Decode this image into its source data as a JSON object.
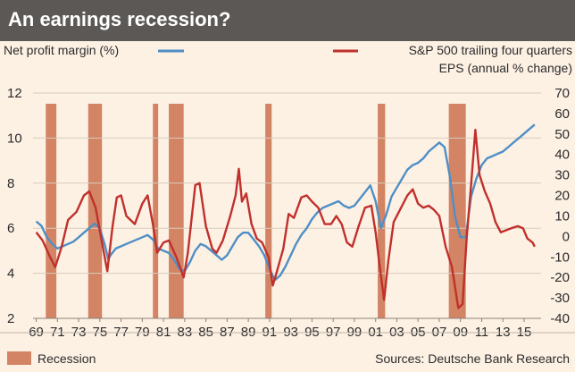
{
  "header": {
    "title": "An earnings recession?"
  },
  "chart_data": {
    "type": "line",
    "title": "An earnings recession?",
    "left_axis_label": "Net profit margin (%)",
    "right_axis_label": [
      "S&P 500 trailing four quarters",
      "EPS (annual % change)"
    ],
    "left_ylim": [
      2,
      12
    ],
    "left_ticks": [
      "2",
      "4",
      "6",
      "8",
      "10",
      "12"
    ],
    "right_ylim": [
      -40,
      70
    ],
    "right_ticks": [
      "-40",
      "-30",
      "-20",
      "-10",
      "0",
      "10",
      "20",
      "30",
      "40",
      "50",
      "60",
      "70"
    ],
    "xlim": [
      1968.7,
      2016.6
    ],
    "x_ticks": [
      "69",
      "71",
      "73",
      "75",
      "77",
      "79",
      "81",
      "83",
      "85",
      "87",
      "89",
      "91",
      "93",
      "95",
      "97",
      "99",
      "01",
      "03",
      "05",
      "07",
      "09",
      "11",
      "13",
      "15"
    ],
    "grid": "horizontal",
    "legend_recession": "Recession",
    "source": "Sources: Deutsche Bank Research",
    "colors": {
      "margin": "#4f8fc6",
      "eps": "#c0302c",
      "recession": "#d28464",
      "title_bg": "#5b5856",
      "background": "#fdf1e4"
    },
    "recessions": [
      [
        1969.9,
        1970.9
      ],
      [
        1973.9,
        1975.2
      ],
      [
        1980.0,
        1980.5
      ],
      [
        1981.5,
        1982.9
      ],
      [
        1990.6,
        1991.2
      ],
      [
        2001.2,
        2001.9
      ],
      [
        2007.9,
        2009.5
      ]
    ],
    "series": [
      {
        "axis": "left",
        "points": [
          [
            1969.0,
            6.3
          ],
          [
            1969.5,
            6.1
          ],
          [
            1970.0,
            5.6
          ],
          [
            1970.5,
            5.3
          ],
          [
            1971.0,
            5.1
          ],
          [
            1971.5,
            5.2
          ],
          [
            1972.0,
            5.3
          ],
          [
            1972.5,
            5.4
          ],
          [
            1973.0,
            5.6
          ],
          [
            1973.5,
            5.8
          ],
          [
            1974.0,
            6.0
          ],
          [
            1974.5,
            6.2
          ],
          [
            1975.0,
            6.0
          ],
          [
            1975.5,
            5.2
          ],
          [
            1975.8,
            4.6
          ],
          [
            1976.0,
            4.8
          ],
          [
            1976.5,
            5.1
          ],
          [
            1977.0,
            5.2
          ],
          [
            1977.5,
            5.3
          ],
          [
            1978.0,
            5.4
          ],
          [
            1978.5,
            5.5
          ],
          [
            1979.0,
            5.6
          ],
          [
            1979.5,
            5.7
          ],
          [
            1980.0,
            5.5
          ],
          [
            1980.5,
            5.1
          ],
          [
            1981.0,
            5.0
          ],
          [
            1981.5,
            4.9
          ],
          [
            1982.0,
            4.6
          ],
          [
            1982.5,
            4.2
          ],
          [
            1983.0,
            4.1
          ],
          [
            1983.5,
            4.5
          ],
          [
            1984.0,
            5.0
          ],
          [
            1984.5,
            5.3
          ],
          [
            1985.0,
            5.2
          ],
          [
            1985.5,
            5.0
          ],
          [
            1986.0,
            4.8
          ],
          [
            1986.5,
            4.6
          ],
          [
            1987.0,
            4.8
          ],
          [
            1987.5,
            5.2
          ],
          [
            1988.0,
            5.6
          ],
          [
            1988.5,
            5.8
          ],
          [
            1989.0,
            5.8
          ],
          [
            1989.5,
            5.5
          ],
          [
            1990.0,
            5.2
          ],
          [
            1990.5,
            4.8
          ],
          [
            1991.0,
            4.2
          ],
          [
            1991.5,
            3.7
          ],
          [
            1992.0,
            3.9
          ],
          [
            1992.5,
            4.3
          ],
          [
            1993.0,
            4.8
          ],
          [
            1993.5,
            5.3
          ],
          [
            1994.0,
            5.7
          ],
          [
            1994.5,
            6.0
          ],
          [
            1995.0,
            6.4
          ],
          [
            1995.5,
            6.7
          ],
          [
            1996.0,
            6.9
          ],
          [
            1996.5,
            7.0
          ],
          [
            1997.0,
            7.1
          ],
          [
            1997.5,
            7.2
          ],
          [
            1998.0,
            7.0
          ],
          [
            1998.5,
            6.9
          ],
          [
            1999.0,
            7.0
          ],
          [
            1999.5,
            7.3
          ],
          [
            2000.0,
            7.6
          ],
          [
            2000.5,
            7.9
          ],
          [
            2001.0,
            7.2
          ],
          [
            2001.5,
            6.0
          ],
          [
            2002.0,
            6.6
          ],
          [
            2002.5,
            7.4
          ],
          [
            2003.0,
            7.8
          ],
          [
            2003.5,
            8.2
          ],
          [
            2004.0,
            8.6
          ],
          [
            2004.5,
            8.8
          ],
          [
            2005.0,
            8.9
          ],
          [
            2005.5,
            9.1
          ],
          [
            2006.0,
            9.4
          ],
          [
            2006.5,
            9.6
          ],
          [
            2007.0,
            9.8
          ],
          [
            2007.5,
            9.6
          ],
          [
            2008.0,
            8.3
          ],
          [
            2008.5,
            6.5
          ],
          [
            2009.0,
            5.6
          ],
          [
            2009.5,
            5.6
          ],
          [
            2010.0,
            7.4
          ],
          [
            2010.5,
            8.2
          ],
          [
            2011.0,
            8.8
          ],
          [
            2011.5,
            9.1
          ],
          [
            2012.0,
            9.2
          ],
          [
            2012.5,
            9.3
          ],
          [
            2013.0,
            9.4
          ],
          [
            2013.5,
            9.6
          ],
          [
            2014.0,
            9.8
          ],
          [
            2014.5,
            10.0
          ],
          [
            2015.0,
            10.2
          ],
          [
            2015.5,
            10.4
          ],
          [
            2016.0,
            10.6
          ]
        ]
      },
      {
        "axis": "right",
        "points": [
          [
            1969.0,
            2
          ],
          [
            1969.6,
            -2
          ],
          [
            1970.3,
            -10
          ],
          [
            1970.8,
            -15
          ],
          [
            1971.4,
            -5
          ],
          [
            1972.0,
            8
          ],
          [
            1972.8,
            12
          ],
          [
            1973.5,
            20
          ],
          [
            1974.0,
            22
          ],
          [
            1974.6,
            14
          ],
          [
            1975.2,
            -3
          ],
          [
            1975.7,
            -17
          ],
          [
            1976.2,
            5
          ],
          [
            1976.6,
            19
          ],
          [
            1977.0,
            20
          ],
          [
            1977.5,
            10
          ],
          [
            1978.3,
            6
          ],
          [
            1979.0,
            16
          ],
          [
            1979.5,
            20
          ],
          [
            1980.0,
            6
          ],
          [
            1980.4,
            -8
          ],
          [
            1981.0,
            -3
          ],
          [
            1981.5,
            -2
          ],
          [
            1982.2,
            -10
          ],
          [
            1982.9,
            -20
          ],
          [
            1983.3,
            -8
          ],
          [
            1984.0,
            25
          ],
          [
            1984.4,
            26
          ],
          [
            1985.0,
            5
          ],
          [
            1985.6,
            -6
          ],
          [
            1986.0,
            -8
          ],
          [
            1986.6,
            -2
          ],
          [
            1987.3,
            10
          ],
          [
            1987.8,
            20
          ],
          [
            1988.1,
            33
          ],
          [
            1988.4,
            17
          ],
          [
            1988.8,
            21
          ],
          [
            1989.3,
            6
          ],
          [
            1989.8,
            -1
          ],
          [
            1990.3,
            -3
          ],
          [
            1990.9,
            -10
          ],
          [
            1991.3,
            -24
          ],
          [
            1991.7,
            -17
          ],
          [
            1992.3,
            -6
          ],
          [
            1992.8,
            11
          ],
          [
            1993.3,
            9
          ],
          [
            1994.0,
            19
          ],
          [
            1994.5,
            20
          ],
          [
            1995.0,
            17
          ],
          [
            1995.6,
            14
          ],
          [
            1996.2,
            6
          ],
          [
            1996.8,
            6
          ],
          [
            1997.3,
            10
          ],
          [
            1997.8,
            6
          ],
          [
            1998.3,
            -3
          ],
          [
            1998.8,
            -5
          ],
          [
            1999.4,
            5
          ],
          [
            2000.0,
            14
          ],
          [
            2000.6,
            15
          ],
          [
            2001.0,
            2
          ],
          [
            2001.4,
            -15
          ],
          [
            2001.8,
            -31
          ],
          [
            2002.2,
            -12
          ],
          [
            2002.7,
            7
          ],
          [
            2003.3,
            13
          ],
          [
            2004.0,
            20
          ],
          [
            2004.5,
            23
          ],
          [
            2005.0,
            16
          ],
          [
            2005.5,
            14
          ],
          [
            2006.0,
            15
          ],
          [
            2006.5,
            13
          ],
          [
            2007.0,
            10
          ],
          [
            2007.6,
            -5
          ],
          [
            2008.2,
            -15
          ],
          [
            2008.8,
            -35
          ],
          [
            2009.2,
            -33
          ],
          [
            2009.6,
            0
          ],
          [
            2010.0,
            25
          ],
          [
            2010.4,
            52
          ],
          [
            2010.8,
            30
          ],
          [
            2011.3,
            22
          ],
          [
            2011.8,
            16
          ],
          [
            2012.3,
            7
          ],
          [
            2012.8,
            2
          ],
          [
            2013.3,
            3
          ],
          [
            2013.8,
            4
          ],
          [
            2014.4,
            5
          ],
          [
            2014.9,
            4
          ],
          [
            2015.3,
            -1
          ],
          [
            2015.8,
            -3
          ],
          [
            2016.0,
            -5
          ]
        ]
      }
    ]
  }
}
